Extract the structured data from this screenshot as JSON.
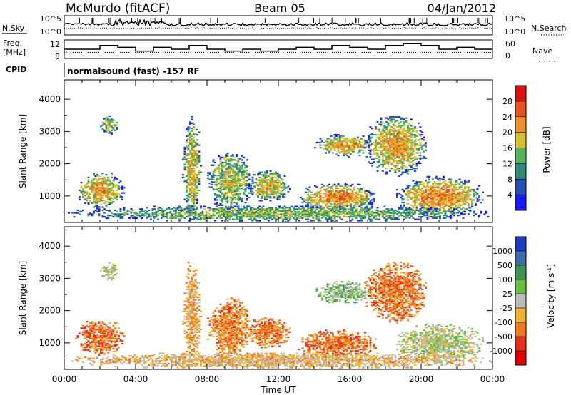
{
  "header": {
    "station": "McMurdo (fitACF)",
    "beam": "Beam 05",
    "date": "04/Jan/2012"
  },
  "summary_panels": {
    "nsky_label": "N.Sky",
    "nsearch_label": "N.Search",
    "nsky_ticks": [
      "10^5",
      "10^0"
    ],
    "nsearch_ticks": [
      "10^5",
      "10^0"
    ],
    "freq_label_line1": "Freq.",
    "freq_label_line2": "[MHz]",
    "freq_ticks": [
      "12",
      "8"
    ],
    "nave_label": "Nave",
    "nave_ticks": [
      "60",
      "0"
    ],
    "cpid_label": "CPID",
    "cpid_text": "normalsound (fast) -157 RF"
  },
  "chart_data": [
    {
      "type": "heatmap",
      "name": "power",
      "ylabel": "Slant Range [km]",
      "yticks": [
        1000,
        2000,
        3000,
        4000
      ],
      "ylim": [
        180,
        4600
      ],
      "xlim": [
        0,
        24
      ],
      "colorbar_label": "Power [dB]",
      "colorbar_ticks": [
        4,
        8,
        12,
        16,
        20,
        24,
        28
      ],
      "colorbar_range": [
        0,
        32
      ],
      "colors": [
        "#1a1aff",
        "#2850b4",
        "#2e8a78",
        "#55b25a",
        "#d6c22a",
        "#f09028",
        "#e8501e",
        "#e01010"
      ],
      "regions": [
        {
          "t": [
            0.6,
            3.4
          ],
          "r": [
            600,
            1700
          ],
          "level": 0.55
        },
        {
          "t": [
            2.0,
            3.0
          ],
          "r": [
            2900,
            3500
          ],
          "level": 0.45
        },
        {
          "t": [
            6.6,
            7.6
          ],
          "r": [
            200,
            3500
          ],
          "level": 0.5
        },
        {
          "t": [
            8.0,
            10.5
          ],
          "r": [
            500,
            2400
          ],
          "level": 0.45
        },
        {
          "t": [
            10.2,
            12.6
          ],
          "r": [
            800,
            1800
          ],
          "level": 0.5
        },
        {
          "t": [
            13.0,
            17.5
          ],
          "r": [
            500,
            1400
          ],
          "level": 0.6
        },
        {
          "t": [
            14.0,
            17.3
          ],
          "r": [
            2200,
            2900
          ],
          "level": 0.55
        },
        {
          "t": [
            16.8,
            20.3
          ],
          "r": [
            1600,
            3500
          ],
          "level": 0.55
        },
        {
          "t": [
            18.5,
            23.5
          ],
          "r": [
            300,
            1600
          ],
          "level": 0.6
        },
        {
          "t": [
            0.0,
            24.0
          ],
          "r": [
            180,
            700
          ],
          "level": 0.4
        }
      ]
    },
    {
      "type": "heatmap",
      "name": "velocity",
      "ylabel": "Slant Range [km]",
      "xlabel": "Time UT",
      "xticks": [
        "00:00",
        "04:00",
        "08:00",
        "12:00",
        "16:00",
        "20:00",
        "00:00"
      ],
      "yticks": [
        1000,
        2000,
        3000,
        4000
      ],
      "ylim": [
        180,
        4600
      ],
      "xlim": [
        0,
        24
      ],
      "colorbar_label": "Velocity [m s^-1]",
      "colorbar_ticks": [
        "1000",
        "500",
        "100",
        "25",
        "-25",
        "-100",
        "-500",
        "-1000"
      ],
      "colors": [
        "#1c3cc8",
        "#3a6ea8",
        "#3c9450",
        "#66c040",
        "#bcbcbc",
        "#f0b030",
        "#f07820",
        "#e83018",
        "#e00000"
      ],
      "regions": [
        {
          "t": [
            0.6,
            3.4
          ],
          "r": [
            600,
            1700
          ],
          "level": -0.55
        },
        {
          "t": [
            2.0,
            3.0
          ],
          "r": [
            2900,
            3500
          ],
          "level": 0.05
        },
        {
          "t": [
            6.6,
            7.6
          ],
          "r": [
            200,
            3500
          ],
          "level": -0.3
        },
        {
          "t": [
            8.0,
            10.5
          ],
          "r": [
            500,
            2400
          ],
          "level": -0.45
        },
        {
          "t": [
            10.2,
            12.6
          ],
          "r": [
            800,
            1800
          ],
          "level": -0.5
        },
        {
          "t": [
            13.0,
            17.5
          ],
          "r": [
            500,
            1400
          ],
          "level": -0.55
        },
        {
          "t": [
            14.0,
            17.3
          ],
          "r": [
            2200,
            2900
          ],
          "level": 0.2
        },
        {
          "t": [
            16.8,
            20.3
          ],
          "r": [
            1600,
            3500
          ],
          "level": -0.5
        },
        {
          "t": [
            18.5,
            23.5
          ],
          "r": [
            300,
            1600
          ],
          "level": 0.05
        },
        {
          "t": [
            0.0,
            24.0
          ],
          "r": [
            180,
            700
          ],
          "level": -0.2
        }
      ]
    }
  ],
  "series_summary": {
    "nsky_level": 0.55,
    "nsearch_level": 0.35,
    "freq_steps": [
      10.5,
      10.5,
      11.5,
      11.0,
      10.0,
      11.0,
      10.5,
      11.5,
      10.5,
      10.0,
      10.5,
      10.0,
      10.5,
      11.0,
      10.5,
      11.5,
      11.0,
      10.5,
      11.5,
      12.0,
      11.5,
      10.5,
      11.0,
      10.5
    ],
    "nave_level": 20
  }
}
